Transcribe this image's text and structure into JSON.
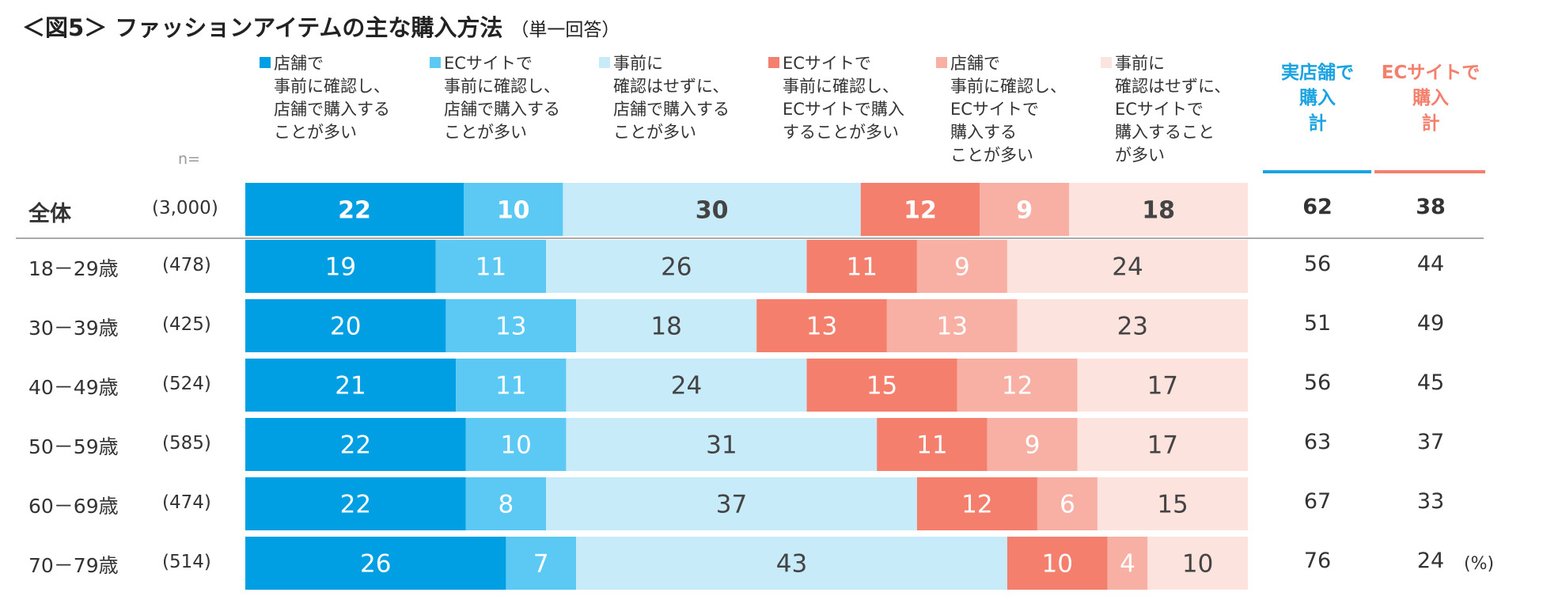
{
  "title": "＜図5＞ ファッションアイテムの主な購入方法",
  "subtitle": "（単一回答）",
  "n_label": "n=",
  "unit_label": "(%)",
  "totals_headers": [
    {
      "label": "実店舗で\n購入\n計",
      "color": "#1aa3e0"
    },
    {
      "label": "ECサイトで\n購入\n計",
      "color": "#f47f6c"
    }
  ],
  "chart_data": {
    "type": "bar",
    "orientation": "horizontal-stacked-100",
    "title": "ファッションアイテムの主な購入方法",
    "series": [
      {
        "name": "店舗で\n事前に確認し、\n店舗で購入する\nことが多い",
        "color": "#009fe3",
        "text_color": "#ffffff"
      },
      {
        "name": "ECサイトで\n事前に確認し、\n店舗で購入する\nことが多い",
        "color": "#5cc9f5",
        "text_color": "#ffffff"
      },
      {
        "name": "事前に\n確認はせずに、\n店舗で購入する\nことが多い",
        "color": "#c8ebfa",
        "text_color": "#444444"
      },
      {
        "name": "ECサイトで\n事前に確認し、\nECサイトで購入\nすることが多い",
        "color": "#f47f6c",
        "text_color": "#ffffff"
      },
      {
        "name": "店舗で\n事前に確認し、\nECサイトで\n購入する\nことが多い",
        "color": "#f9b0a4",
        "text_color": "#ffffff"
      },
      {
        "name": "事前に\n確認はせずに、\nECサイトで\n購入すること\nが多い",
        "color": "#fde3de",
        "text_color": "#444444"
      }
    ],
    "rows": [
      {
        "label": "全体",
        "n": "(3,000)",
        "values": [
          22,
          10,
          30,
          12,
          9,
          18
        ],
        "store_total": 62,
        "ec_total": 38
      },
      {
        "label": "18－29歳",
        "n": "(478)",
        "values": [
          19,
          11,
          26,
          11,
          9,
          24
        ],
        "store_total": 56,
        "ec_total": 44
      },
      {
        "label": "30－39歳",
        "n": "(425)",
        "values": [
          20,
          13,
          18,
          13,
          13,
          23
        ],
        "store_total": 51,
        "ec_total": 49
      },
      {
        "label": "40－49歳",
        "n": "(524)",
        "values": [
          21,
          11,
          24,
          15,
          12,
          17
        ],
        "store_total": 56,
        "ec_total": 45
      },
      {
        "label": "50－59歳",
        "n": "(585)",
        "values": [
          22,
          10,
          31,
          11,
          9,
          17
        ],
        "store_total": 63,
        "ec_total": 37
      },
      {
        "label": "60－69歳",
        "n": "(474)",
        "values": [
          22,
          8,
          37,
          12,
          6,
          15
        ],
        "store_total": 67,
        "ec_total": 33
      },
      {
        "label": "70－79歳",
        "n": "(514)",
        "values": [
          26,
          7,
          43,
          10,
          4,
          10
        ],
        "store_total": 76,
        "ec_total": 24
      }
    ],
    "xlim": [
      0,
      100
    ],
    "legend": "top"
  }
}
